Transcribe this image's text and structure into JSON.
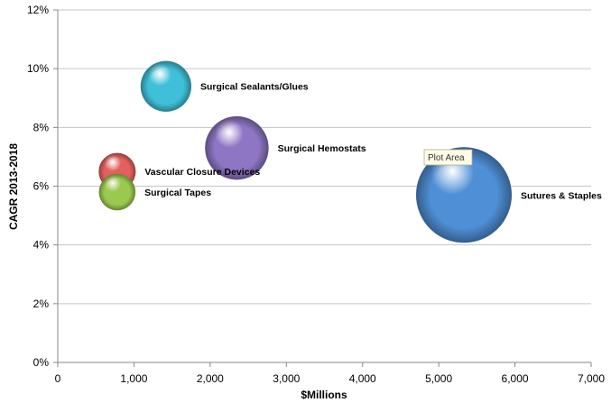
{
  "chart_data": {
    "type": "bubble",
    "xlabel": "$Millions",
    "ylabel": "CAGR 2013-2018",
    "xlim": [
      0,
      7000
    ],
    "ylim": [
      0,
      12
    ],
    "x_ticks": [
      "0",
      "1,000",
      "2,000",
      "3,000",
      "4,000",
      "5,000",
      "6,000",
      "7,000"
    ],
    "y_ticks": [
      "0%",
      "2%",
      "4%",
      "6%",
      "8%",
      "10%",
      "12%"
    ],
    "grid": "horizontal",
    "points": [
      {
        "name": "Surgical Sealants/Glues",
        "x": 1420,
        "y": 9.4,
        "size": 1500,
        "color": "#3fc0d8"
      },
      {
        "name": "Surgical Hemostats",
        "x": 2350,
        "y": 7.3,
        "size": 2350,
        "color": "#8e76c4"
      },
      {
        "name": "Vascular Closure Devices",
        "x": 780,
        "y": 6.5,
        "size": 800,
        "color": "#e2605e"
      },
      {
        "name": "Surgical Tapes",
        "x": 780,
        "y": 5.8,
        "size": 780,
        "color": "#9bc94e"
      },
      {
        "name": "Sutures & Staples",
        "x": 5330,
        "y": 5.7,
        "size": 5330,
        "color": "#4f8fd6"
      }
    ]
  },
  "tooltip": {
    "text": "Plot Area"
  }
}
